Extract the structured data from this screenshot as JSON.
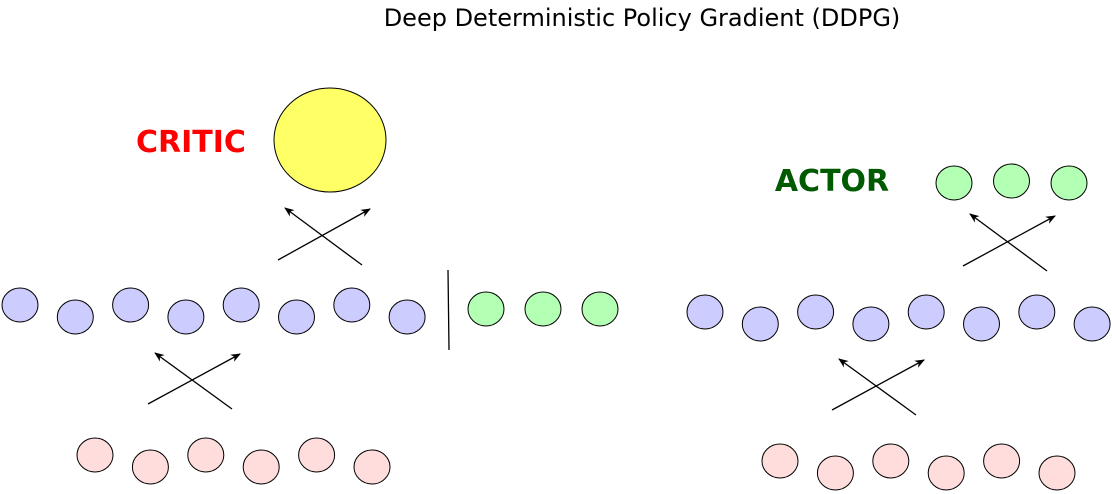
{
  "title": "Deep Deterministic Policy Gradient (DDPG)",
  "critic": {
    "label": "CRITIC",
    "label_color": "#ff0000",
    "output_color": "#ffff66",
    "hidden_color": "#ccccff",
    "action_color": "#b3ffb3",
    "input_color": "#ffdddd",
    "hidden_count": 8,
    "action_count": 3,
    "input_count": 6
  },
  "actor": {
    "label": "ACTOR",
    "label_color": "#005a00",
    "output_color": "#b3ffb3",
    "output_count": 3,
    "hidden_color": "#ccccff",
    "hidden_count": 8,
    "input_color": "#ffdddd",
    "input_count": 6
  }
}
